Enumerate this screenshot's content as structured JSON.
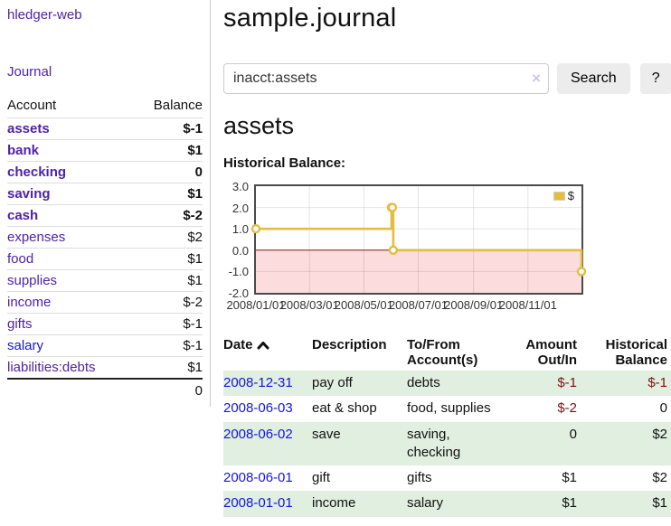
{
  "sidebar": {
    "app_title": "hledger-web",
    "journal_link": "Journal",
    "accounts_header": {
      "account": "Account",
      "balance": "Balance"
    },
    "accounts": [
      {
        "name": "assets",
        "level": 1,
        "bold": true,
        "balance": "$-1",
        "balance_style": "neg-strong"
      },
      {
        "name": "bank",
        "level": 2,
        "bold": true,
        "balance": "$1",
        "balance_style": "pos"
      },
      {
        "name": "checking",
        "level": 3,
        "bold": true,
        "balance": "0",
        "balance_style": "pos"
      },
      {
        "name": "saving",
        "level": 3,
        "bold": true,
        "balance": "$1",
        "balance_style": "pos"
      },
      {
        "name": "cash",
        "level": 2,
        "bold": true,
        "balance": "$-2",
        "balance_style": "neg-strong"
      },
      {
        "name": "expenses",
        "level": 1,
        "bold": false,
        "balance": "$2",
        "balance_style": "pos"
      },
      {
        "name": "food",
        "level": 2,
        "bold": false,
        "balance": "$1",
        "balance_style": "pos"
      },
      {
        "name": "supplies",
        "level": 2,
        "bold": false,
        "balance": "$1",
        "balance_style": "pos"
      },
      {
        "name": "income",
        "level": 1,
        "bold": false,
        "balance": "$-2",
        "balance_style": "neg-soft"
      },
      {
        "name": "gifts",
        "level": 2,
        "bold": false,
        "balance": "$-1",
        "balance_style": "neg-soft"
      },
      {
        "name": "salary",
        "level": 2,
        "bold": false,
        "balance": "$-1",
        "balance_style": "neg-soft",
        "link_color": "blue"
      },
      {
        "name": "liabilities:debts",
        "level": 1,
        "bold": false,
        "balance": "$1",
        "balance_style": "pos"
      }
    ],
    "total": "0"
  },
  "header": {
    "title": "sample.journal",
    "search": {
      "value": "inacct:assets",
      "clear_icon": "×",
      "search_button": "Search",
      "help_button": "?"
    }
  },
  "main": {
    "account_heading": "assets",
    "chart_label": "Historical Balance:"
  },
  "chart_data": {
    "type": "line",
    "style": "step",
    "title": "Historical Balance",
    "series": [
      {
        "name": "$",
        "color": "#e4bd3e",
        "points": [
          [
            "2008-01-01",
            1
          ],
          [
            "2008-06-01",
            2
          ],
          [
            "2008-06-02",
            2
          ],
          [
            "2008-06-03",
            0
          ],
          [
            "2008-12-31",
            -1
          ]
        ]
      }
    ],
    "ylim": [
      -2,
      3
    ],
    "y_ticks": [
      "3.0",
      "2.0",
      "1.0",
      "0.0",
      "-1.0",
      "-2.0"
    ],
    "x_ticks": [
      "2008/01/01",
      "2008/03/01",
      "2008/05/01",
      "2008/07/01",
      "2008/09/01",
      "2008/11/01"
    ],
    "grid": true,
    "legend_position": "top-right",
    "legend": [
      "$"
    ],
    "negative_region_fill": "#fcdcdc",
    "zero_line_color": "#8b1a1a"
  },
  "register": {
    "columns": [
      "Date",
      "Description",
      "To/From Account(s)",
      "Amount Out/In",
      "Historical Balance"
    ],
    "rows": [
      {
        "date": "2008-12-31",
        "description": "pay off",
        "accounts": [
          "debts"
        ],
        "amount": "$-1",
        "amount_negative": true,
        "balance": "$-1",
        "balance_negative": true
      },
      {
        "date": "2008-06-03",
        "description": "eat & shop",
        "accounts": [
          "food",
          "supplies"
        ],
        "amount": "$-2",
        "amount_negative": true,
        "balance": "0",
        "balance_negative": false
      },
      {
        "date": "2008-06-02",
        "description": "save",
        "accounts": [
          "saving",
          "checking"
        ],
        "amount": "0",
        "amount_negative": false,
        "balance": "$2",
        "balance_negative": false
      },
      {
        "date": "2008-06-01",
        "description": "gift",
        "accounts": [
          "gifts"
        ],
        "amount": "$1",
        "amount_negative": false,
        "balance": "$2",
        "balance_negative": false
      },
      {
        "date": "2008-01-01",
        "description": "income",
        "accounts": [
          "salary"
        ],
        "amount": "$1",
        "amount_negative": false,
        "balance": "$1",
        "balance_negative": false
      }
    ]
  }
}
